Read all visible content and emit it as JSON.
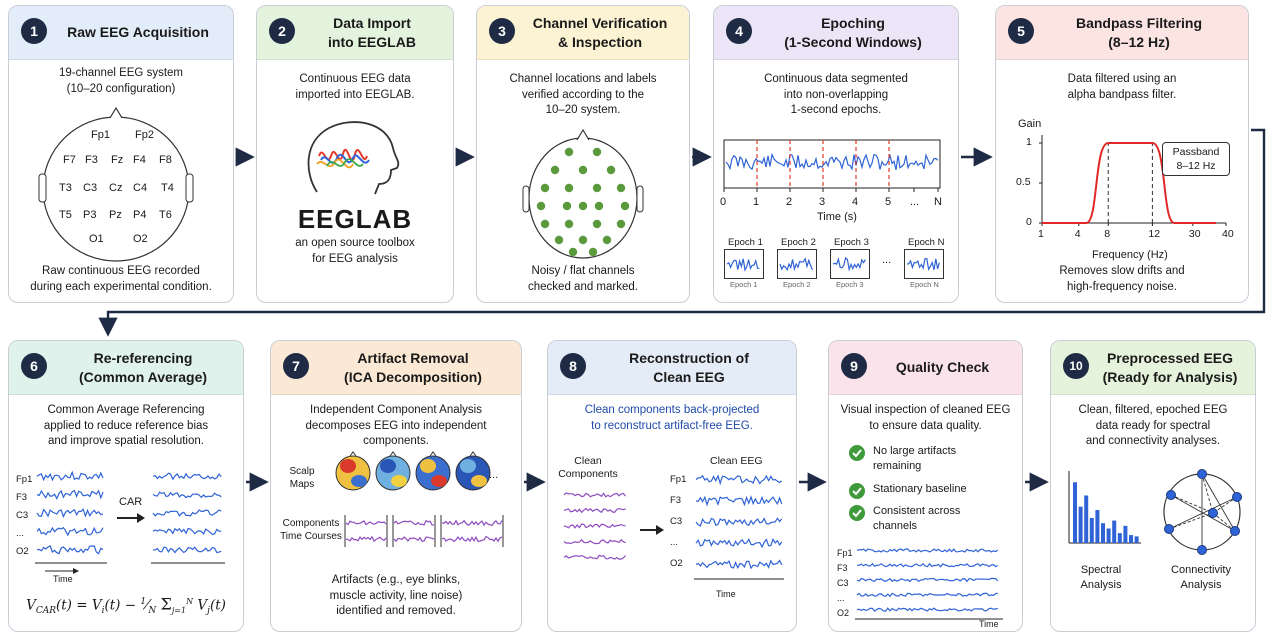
{
  "steps": [
    {
      "num": "1",
      "title": "Raw EEG Acquisition",
      "header_color": "#e3ecf9",
      "desc_top": "19-channel EEG system\n(10–20 configuration)",
      "desc_bottom": "Raw continuous EEG recorded\nduring each experimental condition.",
      "electrodes": [
        "Fp1",
        "Fp2",
        "F7",
        "F3",
        "Fz",
        "F4",
        "F8",
        "T3",
        "C3",
        "Cz",
        "C4",
        "T4",
        "T5",
        "P3",
        "Pz",
        "P4",
        "T6",
        "O1",
        "O2"
      ]
    },
    {
      "num": "2",
      "title": "Data Import\ninto EEGLAB",
      "header_color": "#e4f3de",
      "desc_top": "Continuous EEG data\nimported into EEGLAB.",
      "logo": "EEGLAB",
      "desc_bottom": "an open source toolbox\nfor EEG analysis"
    },
    {
      "num": "3",
      "title": "Channel Verification\n& Inspection",
      "header_color": "#fbf3d3",
      "desc_top": "Channel locations and labels\nverified according to the\n10–20 system.",
      "desc_bottom": "Noisy / flat channels\nchecked and marked."
    },
    {
      "num": "4",
      "title": "Epoching\n(1-Second Windows)",
      "header_color": "#ece5f7",
      "desc_top": "Continuous data segmented\ninto non-overlapping\n1-second epochs.",
      "xticks": [
        "0",
        "1",
        "2",
        "3",
        "4",
        "5",
        "...",
        "N"
      ],
      "xlabel": "Time (s)",
      "epochs": [
        "Epoch 1",
        "Epoch 2",
        "Epoch 3",
        "...",
        "Epoch N"
      ],
      "epoch_sub": [
        "Epoch 1",
        "Epoch 2",
        "Epoch 3",
        "Epoch N"
      ]
    },
    {
      "num": "5",
      "title": "Bandpass Filtering\n(8–12 Hz)",
      "header_color": "#fbe4e2",
      "desc_top": "Data filtered using an\nalpha bandpass filter.",
      "gain_label": "Gain",
      "yticks": [
        "1",
        "0.5",
        "0"
      ],
      "xticks": [
        "1",
        "4",
        "8",
        "12",
        "30",
        "40"
      ],
      "xlabel": "Frequency (Hz)",
      "passband": "Passband\n8–12 Hz",
      "desc_bottom": "Removes slow drifts and\nhigh-frequency noise."
    },
    {
      "num": "6",
      "title": "Re-referencing\n(Common Average)",
      "header_color": "#e0f2ec",
      "desc_top": "Common Average Referencing\napplied to reduce reference bias\nand improve spatial resolution.",
      "channels": [
        "Fp1",
        "F3",
        "C3",
        "...",
        "O2"
      ],
      "car_label": "CAR",
      "time_label": "Time",
      "formula": "V_CAR(t) = V_i(t) − (1/N) Σ_{j=1}^{N} V_j(t)"
    },
    {
      "num": "7",
      "title": "Artifact Removal\n(ICA Decomposition)",
      "header_color": "#fbe9d5",
      "desc_top": "Independent Component Analysis\ndecomposes EEG into independent\ncomponents.",
      "maps_label": "Scalp\nMaps",
      "tc_label": "Components\nTime Courses",
      "desc_bottom": "Artifacts (e.g., eye blinks,\nmuscle activity, line noise)\nidentified and removed."
    },
    {
      "num": "8",
      "title": "Reconstruction of\nClean EEG",
      "header_color": "#e4ecf7",
      "desc_top": "Clean components back-projected\nto reconstruct artifact-free EEG.",
      "clean_comp": "Clean\nComponents",
      "clean_eeg": "Clean EEG",
      "channels": [
        "Fp1",
        "F3",
        "C3",
        "...",
        "O2"
      ],
      "time_label": "Time"
    },
    {
      "num": "9",
      "title": "Quality Check",
      "header_color": "#fbe3ec",
      "desc_top": "Visual inspection of cleaned EEG\nto ensure data quality.",
      "checks": [
        "No large artifacts\nremaining",
        "Stationary baseline",
        "Consistent across\nchannels"
      ],
      "channels": [
        "Fp1",
        "F3",
        "C3",
        "...",
        "O2"
      ],
      "time_label": "Time"
    },
    {
      "num": "10",
      "title": "Preprocessed EEG\n(Ready for Analysis)",
      "header_color": "#e6f3dc",
      "desc_top": "Clean, filtered, epoched EEG\ndata ready for spectral\nand connectivity analyses.",
      "spectral": "Spectral\nAnalysis",
      "connectivity": "Connectivity\nAnalysis",
      "bars": [
        0.92,
        0.55,
        0.72,
        0.38,
        0.5,
        0.3,
        0.22,
        0.34,
        0.15,
        0.26,
        0.12,
        0.1
      ]
    }
  ]
}
